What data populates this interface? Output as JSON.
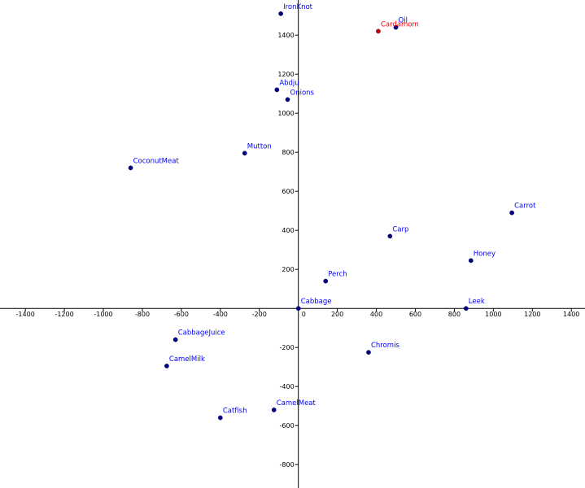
{
  "chart_data": {
    "type": "scatter",
    "grid": false,
    "xlim": [
      -1530,
      1470
    ],
    "ylim": [
      -920,
      1580
    ],
    "x_ticks": [
      -1400,
      -1200,
      -1000,
      -800,
      -600,
      -400,
      -200,
      200,
      400,
      600,
      800,
      1000,
      1200,
      1400
    ],
    "y_ticks": [
      -800,
      -600,
      -400,
      -200,
      200,
      400,
      600,
      800,
      1000,
      1200,
      1400
    ],
    "x_tick_labels": [
      "-1400",
      "-1200",
      "-1000",
      "-800",
      "-600",
      "-400",
      "-200",
      "200",
      "400",
      "600",
      "800",
      "1000",
      "1200",
      "1400"
    ],
    "y_tick_labels": [
      "-800",
      "-600",
      "-400",
      "-200",
      "200",
      "400",
      "600",
      "800",
      "1000",
      "1200",
      "1400"
    ],
    "origin_label": "0",
    "colors": {
      "point": "#00008b",
      "label": "#0000ff",
      "highlight": "#ff0000",
      "highlight_point": "#c80000",
      "axis": "#000000"
    },
    "points": [
      {
        "label": "IronKnot",
        "x": -90,
        "y": 1510
      },
      {
        "label": "Oil",
        "x": 500,
        "y": 1440
      },
      {
        "label": "Cardamom",
        "x": 410,
        "y": 1420,
        "highlight": true
      },
      {
        "label": "Abdju",
        "x": -110,
        "y": 1120
      },
      {
        "label": "Onions",
        "x": -55,
        "y": 1070
      },
      {
        "label": "Mutton",
        "x": -275,
        "y": 795
      },
      {
        "label": "CoconutMeat",
        "x": -860,
        "y": 720
      },
      {
        "label": "Carrot",
        "x": 1095,
        "y": 490
      },
      {
        "label": "Carp",
        "x": 470,
        "y": 370
      },
      {
        "label": "Honey",
        "x": 885,
        "y": 245
      },
      {
        "label": "Perch",
        "x": 140,
        "y": 140
      },
      {
        "label": "Cabbage",
        "x": 0,
        "y": 0
      },
      {
        "label": "Leek",
        "x": 860,
        "y": 0
      },
      {
        "label": "CabbageJuice",
        "x": -630,
        "y": -160
      },
      {
        "label": "Chromis",
        "x": 360,
        "y": -225
      },
      {
        "label": "CamelMilk",
        "x": -675,
        "y": -295
      },
      {
        "label": "CamelMeat",
        "x": -125,
        "y": -520
      },
      {
        "label": "Catfish",
        "x": -400,
        "y": -560
      }
    ]
  }
}
